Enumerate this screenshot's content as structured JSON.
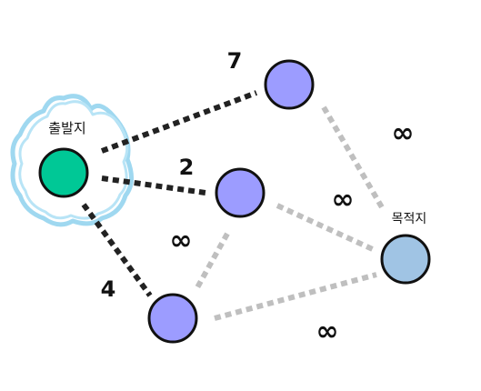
{
  "labels": {
    "start": "출발지",
    "destination": "목적지"
  },
  "weights": {
    "start_to_top": "7",
    "start_to_middle": "2",
    "start_to_bottom": "4",
    "top_to_destination": "∞",
    "middle_to_destination": "∞",
    "middle_to_bottom": "∞",
    "bottom_to_destination": "∞"
  },
  "colors": {
    "start_node": "#00c896",
    "middle_node": "#9c9cff",
    "destination_node": "#a0c4e4",
    "known_edge": "#222222",
    "unknown_edge": "#bfbfbf",
    "highlight": "#9fd8f0"
  }
}
